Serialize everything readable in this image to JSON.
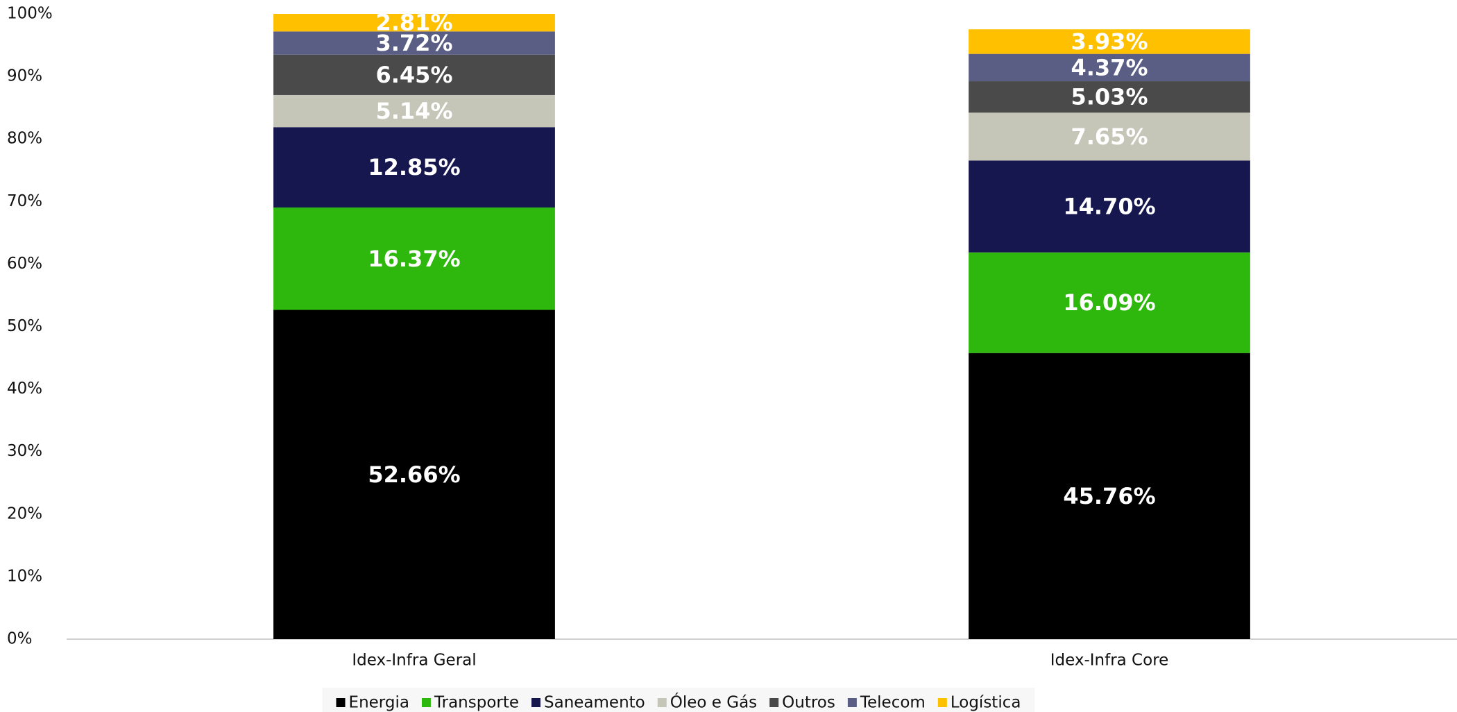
{
  "chart_data": {
    "type": "stacked_bar",
    "categories": [
      "Idex-Infra Geral",
      "Idex-Infra Core"
    ],
    "series": [
      {
        "name": "Energia",
        "color": "#000000",
        "values": [
          52.66,
          45.76
        ],
        "value_labels": [
          "52.66%",
          "45.76%"
        ]
      },
      {
        "name": "Transporte",
        "color": "#2eb80e",
        "values": [
          16.37,
          16.09
        ],
        "value_labels": [
          "16.37%",
          "16.09%"
        ]
      },
      {
        "name": "Saneamento",
        "color": "#17174f",
        "values": [
          12.85,
          14.7
        ],
        "value_labels": [
          "12.85%",
          "14.70%"
        ]
      },
      {
        "name": "Óleo e Gás",
        "color": "#c5c6b8",
        "values": [
          5.14,
          7.65
        ],
        "value_labels": [
          "5.14%",
          "7.65%"
        ]
      },
      {
        "name": "Outros",
        "color": "#4a4a4a",
        "values": [
          6.45,
          5.03
        ],
        "value_labels": [
          "6.45%",
          "5.03%"
        ]
      },
      {
        "name": "Telecom",
        "color": "#5a5e84",
        "values": [
          3.72,
          4.37
        ],
        "value_labels": [
          "3.72%",
          "4.37%"
        ]
      },
      {
        "name": "Logística",
        "color": "#ffc000",
        "values": [
          2.81,
          3.93
        ],
        "value_labels": [
          "2.81%",
          "3.93%"
        ]
      }
    ],
    "ylim": [
      0,
      100
    ],
    "yticks": [
      {
        "value": 0,
        "label": "0%"
      },
      {
        "value": 10,
        "label": "10%"
      },
      {
        "value": 20,
        "label": "20%"
      },
      {
        "value": 30,
        "label": "30%"
      },
      {
        "value": 40,
        "label": "40%"
      },
      {
        "value": 50,
        "label": "50%"
      },
      {
        "value": 60,
        "label": "60%"
      },
      {
        "value": 70,
        "label": "70%"
      },
      {
        "value": 80,
        "label": "80%"
      },
      {
        "value": 90,
        "label": "90%"
      },
      {
        "value": 100,
        "label": "100%"
      }
    ],
    "legend": "bottom"
  }
}
